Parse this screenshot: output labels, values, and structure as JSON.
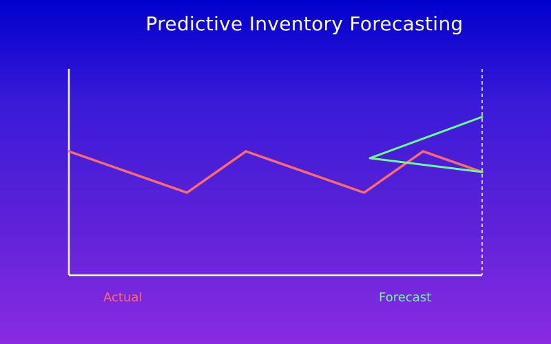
{
  "colors": {
    "background_top": "#0000cd",
    "background_bottom": "#8a2be2",
    "axis": "#ffffff",
    "actual": "#ff6b6b",
    "forecast": "#6bff8a"
  },
  "chart_data": {
    "type": "line",
    "title": "Predictive Inventory Forecasting",
    "xlabel": "",
    "ylabel": "",
    "xlim": [
      0,
      7
    ],
    "ylim": [
      0,
      10
    ],
    "grid": false,
    "legend": {
      "placement": "bottom",
      "entries": [
        "Actual",
        "Forecast"
      ]
    },
    "series": [
      {
        "name": "Actual",
        "color": "#ff6b6b",
        "points": [
          [
            0,
            6
          ],
          [
            2,
            4
          ],
          [
            3,
            6
          ],
          [
            5,
            4
          ],
          [
            6,
            6
          ],
          [
            7,
            5
          ]
        ]
      },
      {
        "name": "Forecast",
        "color": "#6bff8a",
        "band": true,
        "origin": [
          5.1,
          5.67
        ],
        "upper": [
          7,
          7.67
        ],
        "lower": [
          7,
          5.0
        ]
      }
    ],
    "forecast_boundary_x": 7
  }
}
